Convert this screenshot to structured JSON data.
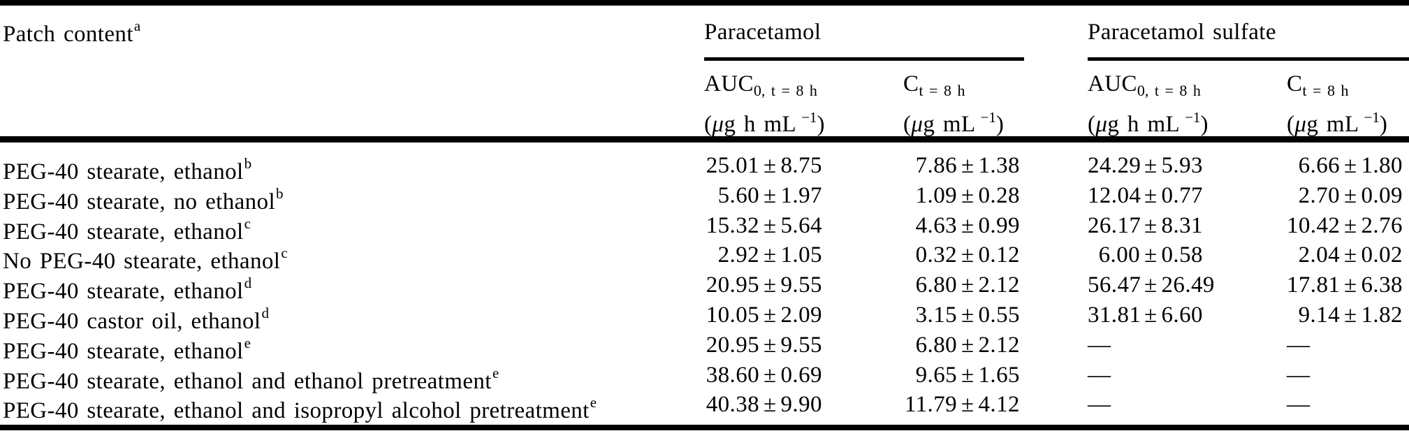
{
  "ink_color": "#000000",
  "symbols": {
    "pm": "±",
    "dash": "—"
  },
  "table": {
    "col1": {
      "label": "Patch content",
      "sup": "a"
    },
    "groups": [
      {
        "label": "Paracetamol"
      },
      {
        "label": "Paracetamol sulfate"
      }
    ],
    "subheaders": [
      {
        "main": "AUC",
        "sub": "0, t = 8 h",
        "unit_open": "(",
        "unit_mu": "μ",
        "unit_body": "g h mL",
        "unit_sup": "−1",
        "unit_close": ")"
      },
      {
        "main": "C",
        "sub": "t = 8 h",
        "unit_open": "(",
        "unit_mu": "μ",
        "unit_body": "g mL",
        "unit_sup": "−1",
        "unit_close": ")"
      },
      {
        "main": "AUC",
        "sub": "0, t = 8 h",
        "unit_open": "(",
        "unit_mu": "μ",
        "unit_body": "g h mL",
        "unit_sup": "−1",
        "unit_close": ")"
      },
      {
        "main": "C",
        "sub": "t = 8 h",
        "unit_open": "(",
        "unit_mu": "μ",
        "unit_body": "g mL",
        "unit_sup": "−1",
        "unit_close": ")"
      }
    ],
    "rows": [
      {
        "label": "PEG-40 stearate, ethanol",
        "sup": "b",
        "cells": [
          {
            "v": "25.01",
            "e": "8.75"
          },
          {
            "v": "7.86",
            "e": "1.38"
          },
          {
            "v": "24.29",
            "e": "5.93"
          },
          {
            "v": "6.66",
            "e": "1.80"
          }
        ]
      },
      {
        "label": "PEG-40 stearate, no ethanol",
        "sup": "b",
        "cells": [
          {
            "v": "5.60",
            "e": "1.97"
          },
          {
            "v": "1.09",
            "e": "0.28"
          },
          {
            "v": "12.04",
            "e": "0.77"
          },
          {
            "v": "2.70",
            "e": "0.09"
          }
        ]
      },
      {
        "label": "PEG-40 stearate, ethanol",
        "sup": "c",
        "cells": [
          {
            "v": "15.32",
            "e": "5.64"
          },
          {
            "v": "4.63",
            "e": "0.99"
          },
          {
            "v": "26.17",
            "e": "8.31"
          },
          {
            "v": "10.42",
            "e": "2.76"
          }
        ]
      },
      {
        "label": "No PEG-40 stearate, ethanol",
        "sup": "c",
        "cells": [
          {
            "v": "2.92",
            "e": "1.05"
          },
          {
            "v": "0.32",
            "e": "0.12"
          },
          {
            "v": "6.00",
            "e": "0.58"
          },
          {
            "v": "2.04",
            "e": "0.02"
          }
        ]
      },
      {
        "label": "PEG-40 stearate, ethanol",
        "sup": "d",
        "cells": [
          {
            "v": "20.95",
            "e": "9.55"
          },
          {
            "v": "6.80",
            "e": "2.12"
          },
          {
            "v": "56.47",
            "e": "26.49"
          },
          {
            "v": "17.81",
            "e": "6.38"
          }
        ]
      },
      {
        "label": "PEG-40 castor oil, ethanol",
        "sup": "d",
        "cells": [
          {
            "v": "10.05",
            "e": "2.09"
          },
          {
            "v": "3.15",
            "e": "0.55"
          },
          {
            "v": "31.81",
            "e": "6.60"
          },
          {
            "v": "9.14",
            "e": "1.82"
          }
        ]
      },
      {
        "label": "PEG-40 stearate, ethanol",
        "sup": "e",
        "cells": [
          {
            "v": "20.95",
            "e": "9.55"
          },
          {
            "v": "6.80",
            "e": "2.12"
          },
          {
            "dash": true
          },
          {
            "dash": true
          }
        ]
      },
      {
        "label": "PEG-40 stearate, ethanol and ethanol pretreatment",
        "sup": "e",
        "cells": [
          {
            "v": "38.60",
            "e": "0.69"
          },
          {
            "v": "9.65",
            "e": "1.65"
          },
          {
            "dash": true
          },
          {
            "dash": true
          }
        ]
      },
      {
        "label": "PEG-40 stearate, ethanol and isopropyl alcohol pretreatment",
        "sup": "e",
        "cells": [
          {
            "v": "40.38",
            "e": "9.90"
          },
          {
            "v": "11.79",
            "e": "4.12"
          },
          {
            "dash": true
          },
          {
            "dash": true
          }
        ]
      }
    ]
  }
}
